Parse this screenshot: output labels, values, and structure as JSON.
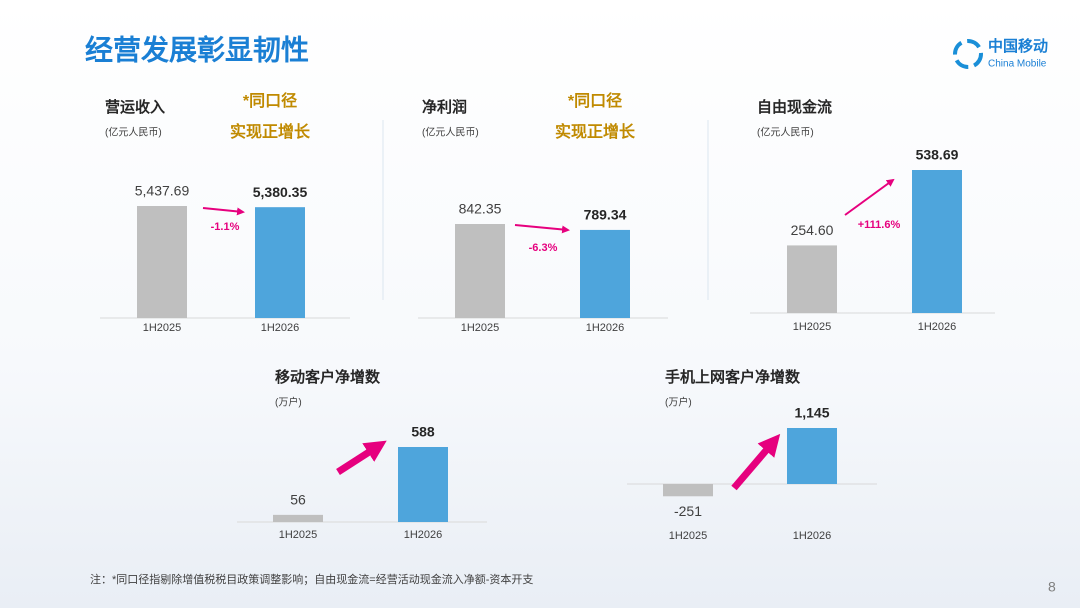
{
  "header": {
    "title": "经营发展彰显韧性",
    "logo_cn": "中国移动",
    "logo_en": "China Mobile"
  },
  "chart_data": [
    {
      "type": "bar",
      "title": "营运收入",
      "subtitle": "(亿元人民币)",
      "annotations": [
        "*同口径",
        "实现正增长"
      ],
      "change": "-1.1%",
      "categories": [
        "1H2025",
        "1H2026"
      ],
      "values": [
        5437.69,
        5380.35
      ],
      "value_labels": [
        "5,437.69",
        "5,380.35"
      ],
      "colors": [
        "#bfbfbf",
        "#4ea5dc"
      ]
    },
    {
      "type": "bar",
      "title": "净利润",
      "subtitle": "(亿元人民币)",
      "annotations": [
        "*同口径",
        "实现正增长"
      ],
      "change": "-6.3%",
      "categories": [
        "1H2025",
        "1H2026"
      ],
      "values": [
        842.35,
        789.34
      ],
      "colors": [
        "#bfbfbf",
        "#4ea5dc"
      ]
    },
    {
      "type": "bar",
      "title": "自由现金流",
      "subtitle": "(亿元人民币)",
      "change": "+111.6%",
      "categories": [
        "1H2025",
        "1H2026"
      ],
      "values": [
        254.6,
        538.69
      ],
      "value_labels": [
        "254.60",
        "538.69"
      ],
      "colors": [
        "#bfbfbf",
        "#4ea5dc"
      ]
    },
    {
      "type": "bar",
      "title": "移动客户净增数",
      "subtitle": "(万户)",
      "categories": [
        "1H2025",
        "1H2026"
      ],
      "values": [
        56,
        588
      ],
      "colors": [
        "#bfbfbf",
        "#4ea5dc"
      ]
    },
    {
      "type": "bar",
      "title": "手机上网客户净增数",
      "subtitle": "(万户)",
      "categories": [
        "1H2025",
        "1H2026"
      ],
      "values": [
        -251,
        1145
      ],
      "value_labels": [
        "-251",
        "1,145"
      ],
      "colors": [
        "#bfbfbf",
        "#4ea5dc"
      ]
    }
  ],
  "footer": {
    "note": "注：*同口径指剔除增值税税目政策调整影响；自由现金流=经营活动现金流入净额-资本开支",
    "page": "8"
  }
}
